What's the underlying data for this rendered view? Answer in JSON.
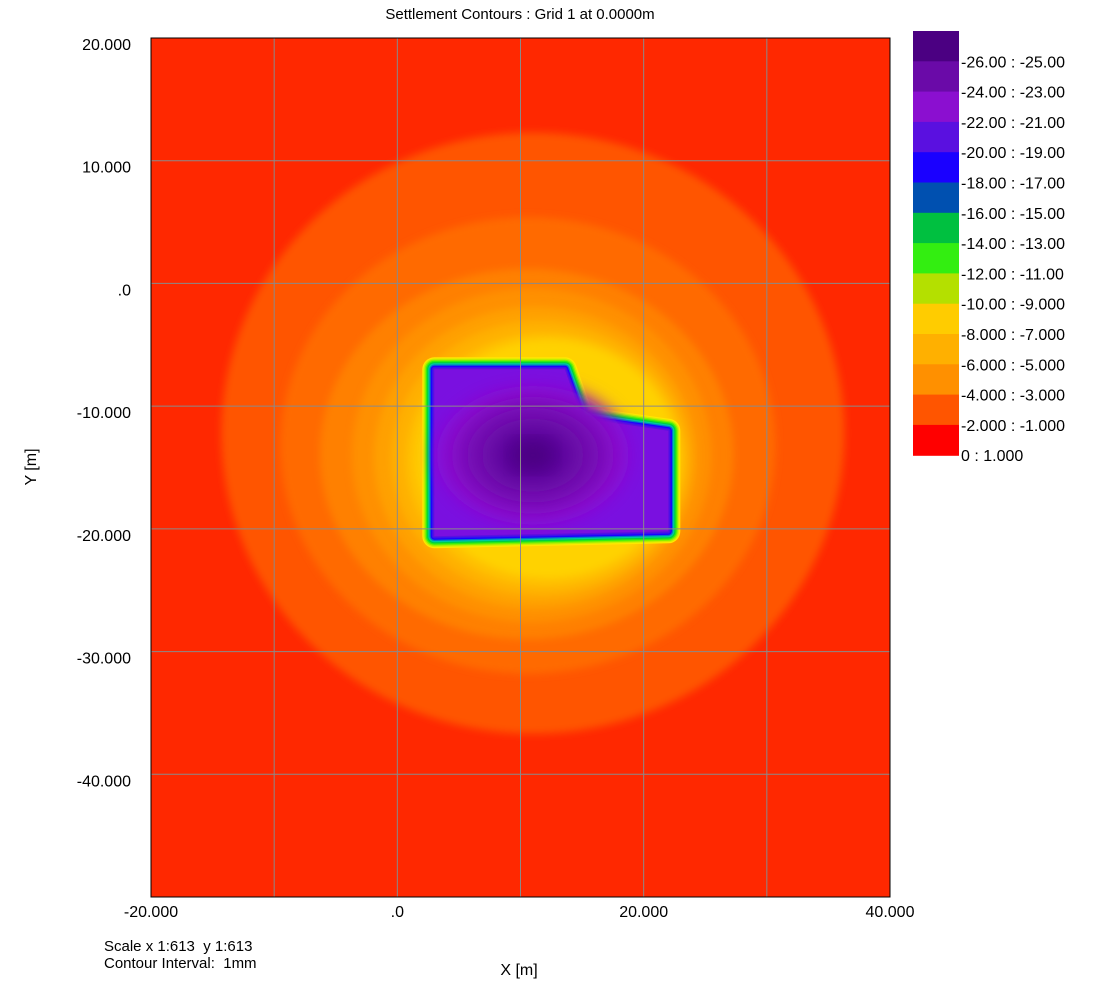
{
  "chart_data": {
    "type": "heatmap",
    "title": "Settlement Contours : Grid 1 at 0.0000m",
    "xlabel": "X [m]",
    "ylabel": "Y [m]",
    "xlim": [
      -20,
      40
    ],
    "ylim": [
      -50,
      20
    ],
    "x_ticks": [
      -20,
      0,
      20,
      40
    ],
    "x_tick_labels": [
      "-20.000",
      ".0",
      "20.000",
      "40.000"
    ],
    "y_ticks": [
      20,
      10,
      0,
      -10,
      -20,
      -30,
      -40
    ],
    "y_tick_labels": [
      "20.000",
      "10.000",
      ".0",
      "-10.000",
      "-20.000",
      "-30.000",
      "-40.000"
    ],
    "grid": true,
    "grid_x": [
      -20,
      -10,
      0,
      10,
      20,
      30,
      40
    ],
    "grid_y": [
      20,
      10,
      0,
      -10,
      -20,
      -30,
      -40,
      -50
    ],
    "legend_position": "right",
    "legend": [
      {
        "label": "-26.00 : -25.00",
        "color": "#4b0082"
      },
      {
        "label": "-24.00 : -23.00",
        "color": "#6a0aa8"
      },
      {
        "label": "-22.00 : -21.00",
        "color": "#8b0fd0"
      },
      {
        "label": "-20.00 : -19.00",
        "color": "#5a10e0"
      },
      {
        "label": "-18.00 : -17.00",
        "color": "#1a00ff"
      },
      {
        "label": "-16.00 : -15.00",
        "color": "#0050b0"
      },
      {
        "label": "-14.00 : -13.00",
        "color": "#00c040"
      },
      {
        "label": "-12.00 : -11.00",
        "color": "#33ee11"
      },
      {
        "label": "-10.00 : -9.000",
        "color": "#b4e000"
      },
      {
        "label": "-8.000 : -7.000",
        "color": "#ffcc00"
      },
      {
        "label": "-6.000 : -5.000",
        "color": "#ffb000"
      },
      {
        "label": "-4.000 : -3.000",
        "color": "#ff9000"
      },
      {
        "label": "-2.000 : -1.000",
        "color": "#ff5500"
      },
      {
        "label": "0 : 1.000",
        "color": "#ff0000"
      }
    ],
    "background_color": "#ff2800",
    "contours": [
      {
        "level": -1,
        "color": "#ff5500",
        "shape": "ellipse",
        "center": [
          11,
          -12.2
        ],
        "radius": [
          25.3,
          24.5
        ]
      },
      {
        "level": -2,
        "color": "#ff6a00",
        "shape": "ellipse",
        "center": [
          10.6,
          -13.2
        ],
        "radius": [
          20.1,
          18.6
        ]
      },
      {
        "level": -3,
        "color": "#ff8000",
        "shape": "ellipse",
        "center": [
          10.5,
          -13.9
        ],
        "radius": [
          16.8,
          15.1
        ]
      },
      {
        "level": -4,
        "color": "#ff9000",
        "shape": "ellipse",
        "center": [
          10.9,
          -14
        ],
        "radius": [
          14.6,
          13.6
        ]
      },
      {
        "level": -5,
        "color": "#ffa000",
        "shape": "ellipse",
        "center": [
          11.2,
          -14.2
        ],
        "radius": [
          13.1,
          12.3
        ]
      },
      {
        "level": -6,
        "color": "#ffb000",
        "shape": "ellipse",
        "center": [
          11.6,
          -14.3
        ],
        "radius": [
          12.1,
          11.3
        ]
      },
      {
        "level": -7,
        "color": "#ffc000",
        "shape": "ellipse",
        "center": [
          12,
          -14.4
        ],
        "radius": [
          11.3,
          10.4
        ]
      },
      {
        "level": -8,
        "color": "#ffd200",
        "shape": "ellipse",
        "center": [
          12.2,
          -14.3
        ],
        "radius": [
          10.6,
          9.7
        ]
      }
    ],
    "loaded_area": {
      "polygon": [
        [
          3,
          -7
        ],
        [
          13.6,
          -7
        ],
        [
          15,
          -11
        ],
        [
          22,
          -12
        ],
        [
          22,
          -20.2
        ],
        [
          3,
          -20.6
        ]
      ],
      "edge_band_colors": [
        "#ffe800",
        "#d0ee00",
        "#88f000",
        "#33ee11",
        "#00d040",
        "#00c8a0",
        "#0078c8",
        "#1a00ff",
        "#3a10f0",
        "#5a10e0"
      ],
      "interior_levels": [
        {
          "level": -20,
          "color": "#7a10e0"
        },
        {
          "level": -21,
          "color": "#8b0fd0"
        },
        {
          "level": -22,
          "color": "#7e0cc0"
        },
        {
          "level": -23,
          "color": "#7208b0"
        },
        {
          "level": -24,
          "color": "#6a0aa8"
        },
        {
          "level": -25,
          "color": "#58069a"
        },
        {
          "level": -26,
          "color": "#4b0082"
        }
      ],
      "max_settlement_location": [
        11,
        -14
      ]
    }
  },
  "footer": {
    "scale": "Scale x 1:613  y 1:613",
    "contour_interval": "Contour Interval:  1mm"
  }
}
